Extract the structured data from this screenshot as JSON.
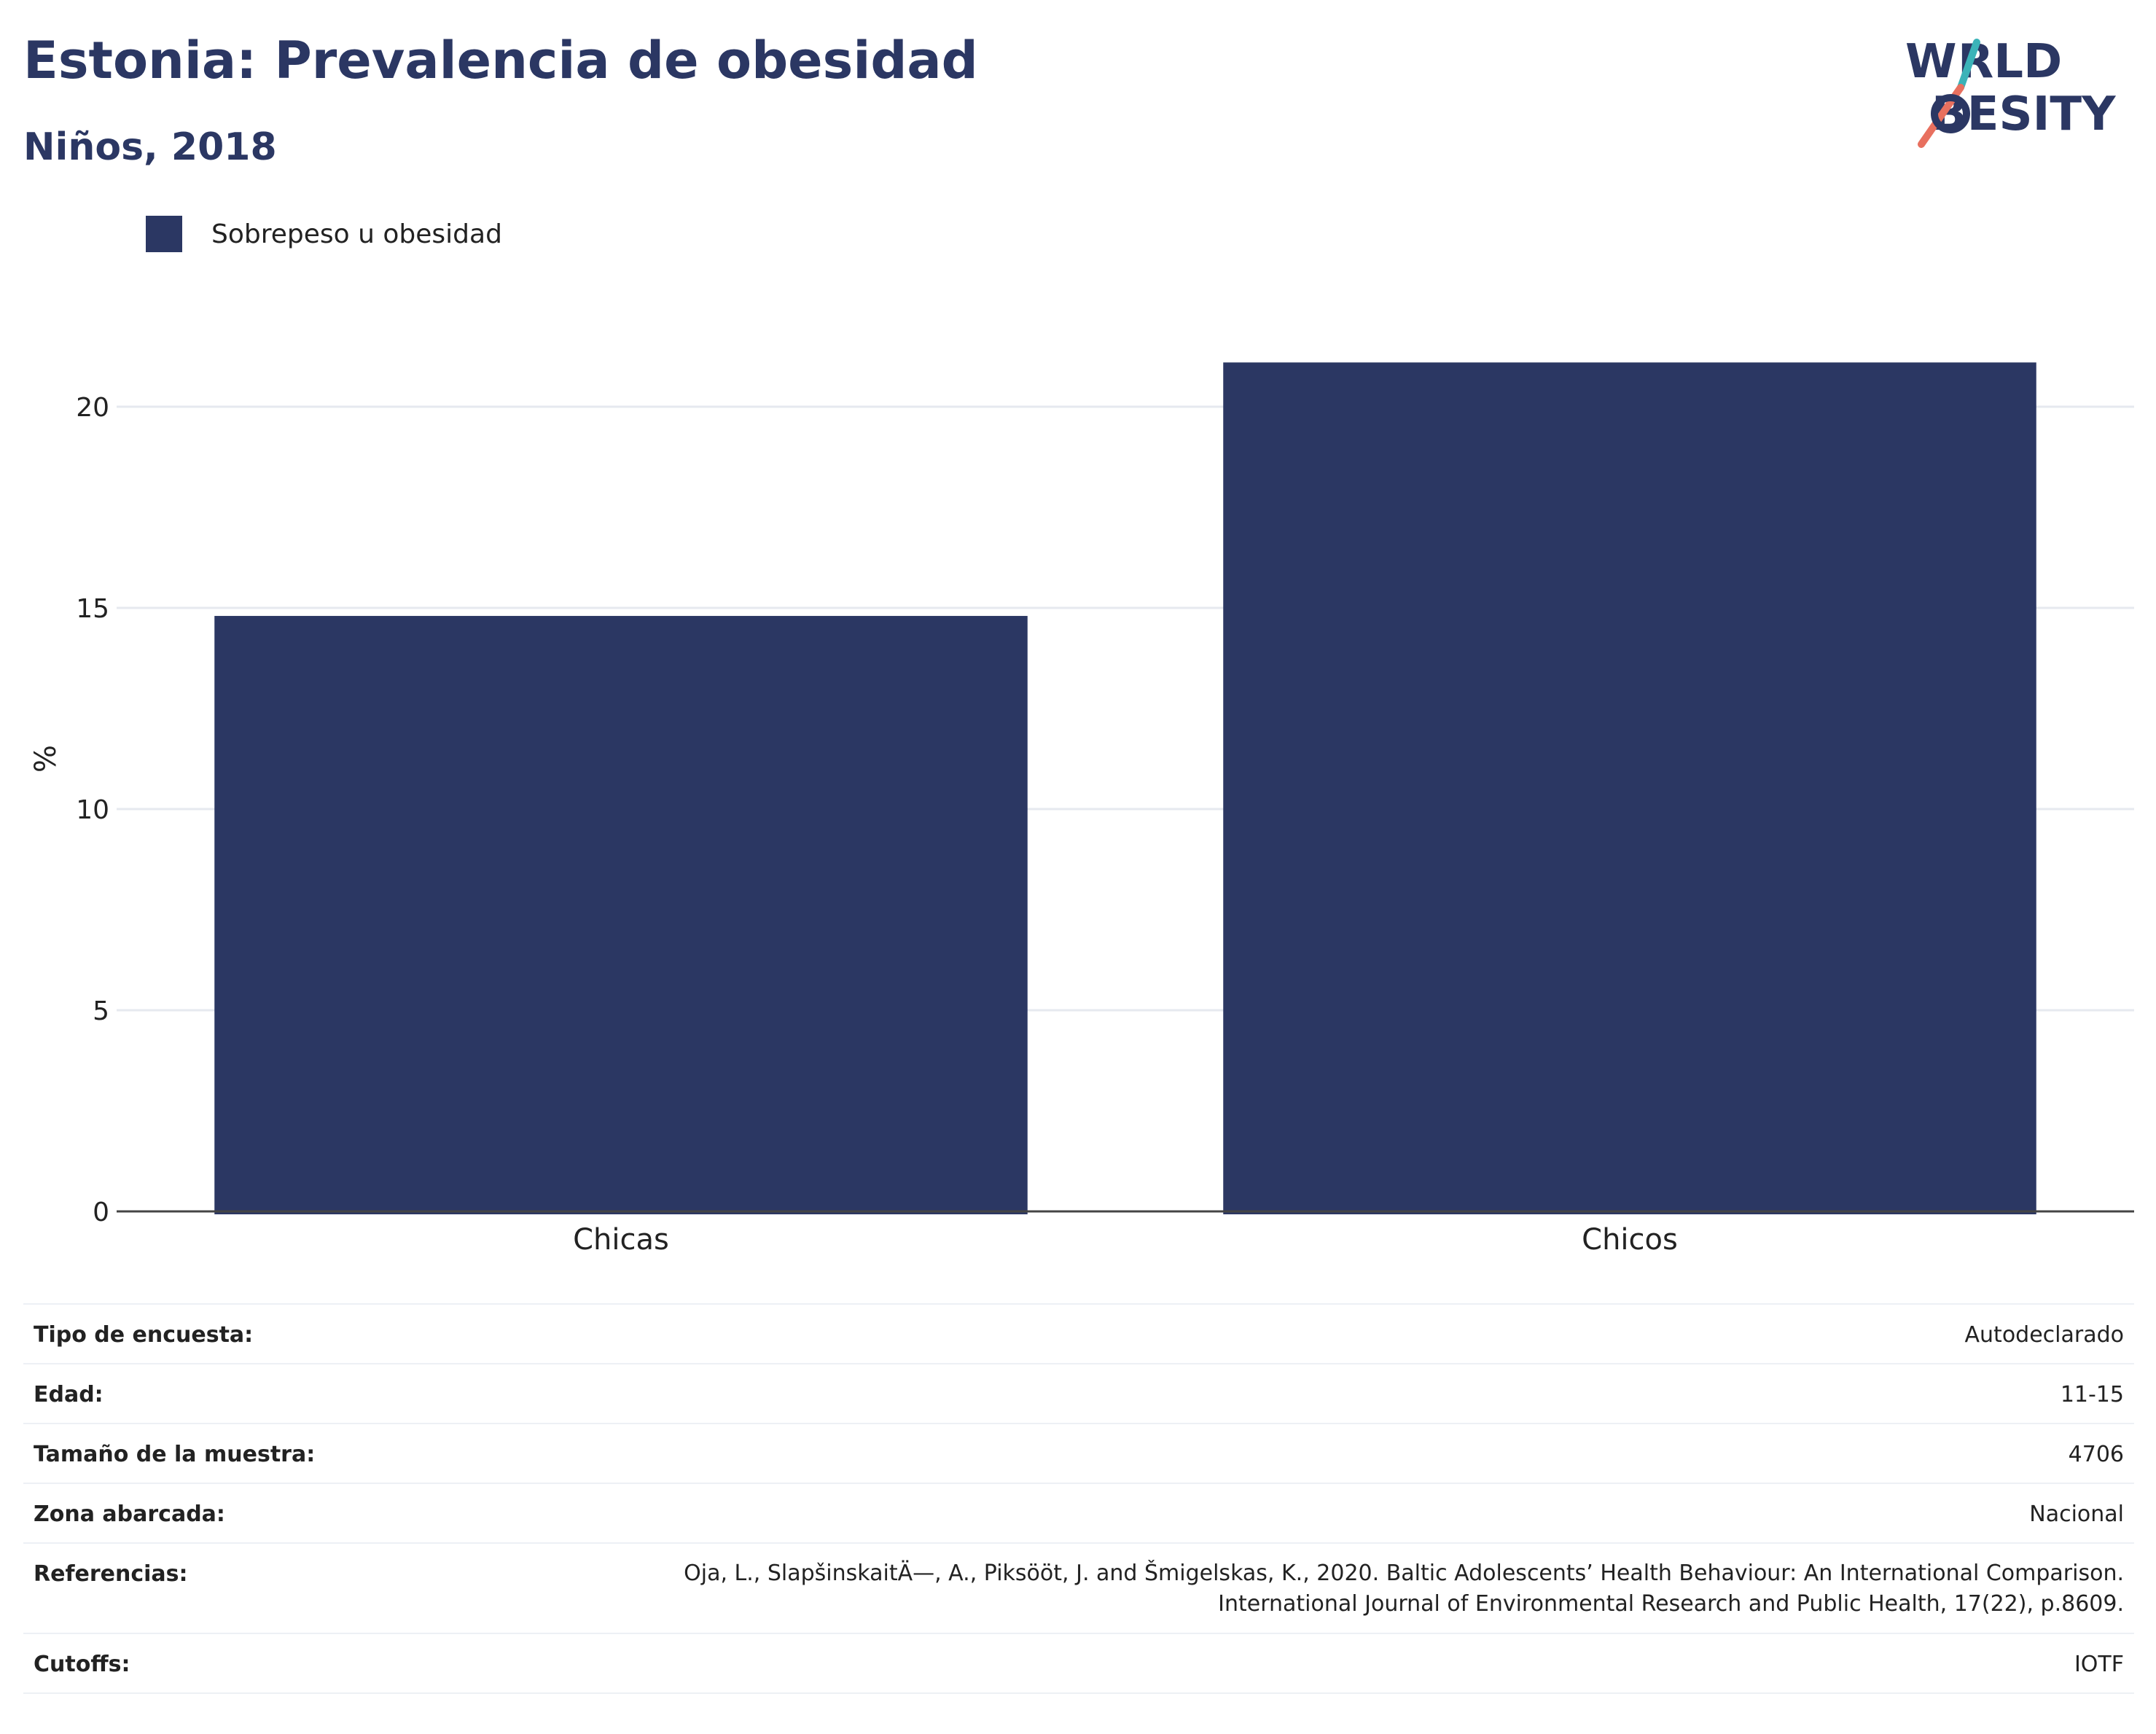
{
  "header": {
    "title": "Estonia: Prevalencia de obesidad",
    "subtitle": "Niños, 2018"
  },
  "logo": {
    "line1": "WORLD",
    "line2": "OBESITY",
    "accent_teal": "#3bb3b8",
    "accent_coral": "#e8705f"
  },
  "chart_data": {
    "type": "bar",
    "categories": [
      "Chicas",
      "Chicos"
    ],
    "series": [
      {
        "name": "Sobrepeso u obesidad",
        "values": [
          14.8,
          21.1
        ],
        "color": "#2b3763"
      }
    ],
    "ylabel": "%",
    "yticks": [
      0,
      5,
      10,
      15,
      20
    ],
    "ylim": [
      0,
      22.5
    ],
    "grid": true,
    "legend_position": "top-left"
  },
  "info": {
    "rows": [
      {
        "key": "Tipo de encuesta:",
        "value": "Autodeclarado"
      },
      {
        "key": "Edad:",
        "value": "11-15"
      },
      {
        "key": "Tamaño de la muestra:",
        "value": "4706"
      },
      {
        "key": "Zona abarcada:",
        "value": "Nacional"
      },
      {
        "key": "Referencias:",
        "value_line1": "Oja, L., SlapšinskaitÄ—, A., Piksööt, J. and Šmigelskas, K., 2020. Baltic Adolescents’ Health Behaviour: An International Comparison.",
        "value_line2": "International Journal of Environmental Research and Public Health, 17(22), p.8609."
      },
      {
        "key": "Cutoffs:",
        "value": "IOTF"
      }
    ]
  }
}
